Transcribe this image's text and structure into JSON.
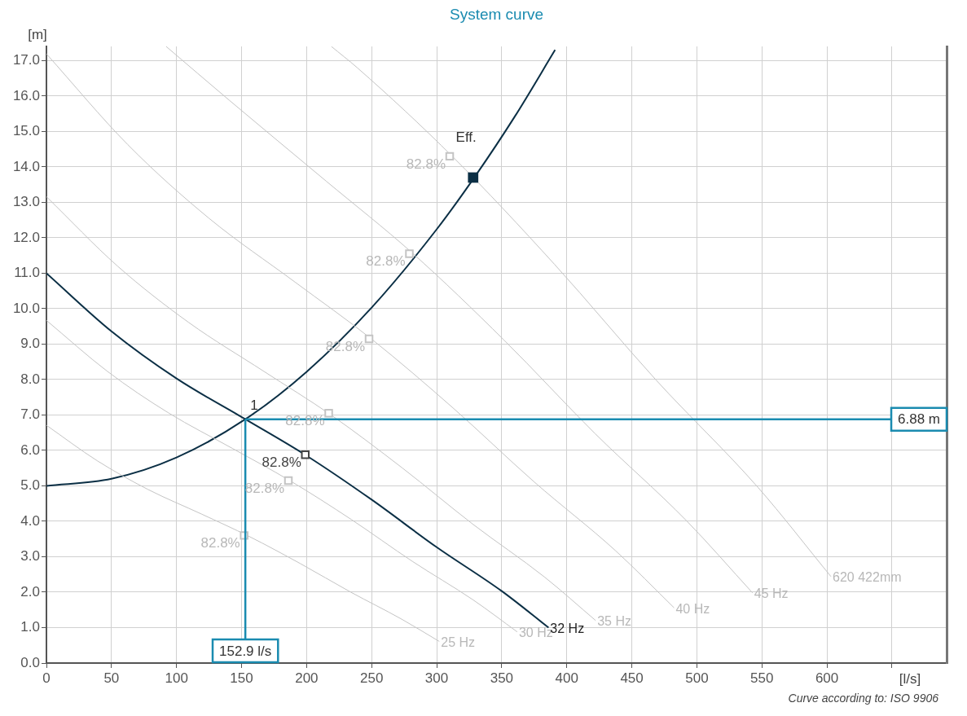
{
  "chart_data": {
    "type": "line",
    "title": "System curve",
    "xlabel": "[l/s]",
    "ylabel": "[m]",
    "xlim": [
      0,
      692
    ],
    "ylim": [
      0,
      17.4
    ],
    "xticks": [
      0,
      50,
      100,
      150,
      200,
      250,
      300,
      350,
      400,
      450,
      500,
      550,
      600,
      {
        "value": 650,
        "label": null
      }
    ],
    "yticks": [
      {
        "value": 0,
        "label": "0.0"
      },
      {
        "value": 1,
        "label": "1.0"
      },
      {
        "value": 2,
        "label": "2.0"
      },
      {
        "value": 3,
        "label": "3.0"
      },
      {
        "value": 4,
        "label": "4.0"
      },
      {
        "value": 5,
        "label": "5.0"
      },
      {
        "value": 6,
        "label": "6.0"
      },
      {
        "value": 7,
        "label": "7.0"
      },
      {
        "value": 8,
        "label": "8.0"
      },
      {
        "value": 9,
        "label": "9.0"
      },
      {
        "value": 10,
        "label": "10.0"
      },
      {
        "value": 11,
        "label": "11.0"
      },
      {
        "value": 12,
        "label": "12.0"
      },
      {
        "value": 13,
        "label": "13.0"
      },
      {
        "value": 14,
        "label": "14.0"
      },
      {
        "value": 15,
        "label": "15.0"
      },
      {
        "value": 16,
        "label": "16.0"
      },
      {
        "value": 17,
        "label": "17.0"
      }
    ],
    "grid": true,
    "legend": false,
    "series": [
      {
        "name": "25 Hz",
        "color": "#c4c4c4",
        "marker": "none",
        "x": [
          0,
          39,
          78,
          119.5,
          156,
          195,
          234,
          273,
          302
        ],
        "values": [
          6.71,
          5.71,
          4.9,
          4.2,
          3.57,
          2.81,
          2.0,
          1.24,
          0.61
        ]
      },
      {
        "name": "30 Hz",
        "color": "#c4c4c4",
        "marker": "none",
        "x": [
          0,
          46.9,
          93.8,
          143.3,
          187.5,
          234.4,
          281.3,
          328.1,
          361.9
        ],
        "values": [
          9.67,
          8.23,
          7.06,
          6.05,
          5.14,
          4.05,
          2.87,
          1.78,
          0.88
        ]
      },
      {
        "name": "35 Hz",
        "color": "#c4c4c4",
        "marker": "none",
        "x": [
          0,
          54.7,
          109.4,
          167.2,
          218.8,
          273.4,
          328.1,
          382.8,
          422.2
        ],
        "values": [
          13.16,
          11.2,
          9.61,
          8.23,
          7.0,
          5.51,
          3.91,
          2.43,
          1.2
        ]
      },
      {
        "name": "40 Hz",
        "color": "#c4c4c4",
        "marker": "none",
        "x": [
          0,
          62.5,
          125,
          191.1,
          250,
          312.5,
          375,
          437.5,
          482.5
        ],
        "values": [
          17.19,
          14.63,
          12.55,
          10.75,
          9.14,
          7.2,
          5.11,
          3.17,
          1.56
        ]
      },
      {
        "name": "45 Hz",
        "color": "#c4c4c4",
        "marker": "none",
        "x": [
          92,
          140.6,
          215,
          281.3,
          351.6,
          421.9,
          492.2,
          542.8
        ],
        "values": [
          17.4,
          15.88,
          13.6,
          11.57,
          9.12,
          6.47,
          4.01,
          1.98
        ]
      },
      {
        "name": "620 422mm",
        "color": "#c4c4c4",
        "marker": "none",
        "x": [
          219,
          238.9,
          312.5,
          390.6,
          468.8,
          546.9,
          603.1
        ],
        "values": [
          17.4,
          16.8,
          14.28,
          11.25,
          7.98,
          4.96,
          2.44
        ]
      },
      {
        "name": "32 Hz",
        "color": "#0b2f45",
        "marker": "none",
        "x": [
          0,
          50,
          100,
          152.9,
          200,
          250,
          300,
          350,
          386
        ],
        "values": [
          11.0,
          9.36,
          8.03,
          6.88,
          5.85,
          4.61,
          3.27,
          2.03,
          1.0
        ]
      },
      {
        "color": "#0b2f45",
        "marker": "none",
        "x": [
          0,
          50,
          100,
          152.9,
          200,
          250,
          300,
          330,
          360,
          391
        ],
        "values": [
          5.0,
          5.2,
          5.8,
          6.88,
          8.22,
          10.03,
          12.24,
          13.76,
          15.42,
          17.3
        ]
      },
      {
        "type": "scatter",
        "color": "#c4c4c4",
        "marker": "square",
        "x": [
          152,
          186,
          217,
          248,
          279,
          310
        ],
        "values": [
          3.6,
          5.15,
          7.05,
          9.15,
          11.55,
          14.3
        ]
      },
      {
        "type": "scatter",
        "color": "#444444",
        "marker": "square",
        "x": [
          199
        ],
        "values": [
          5.88
        ]
      },
      {
        "type": "scatter",
        "color": "#0b2f45",
        "marker": "square",
        "x": [
          328
        ],
        "values": [
          13.7
        ]
      }
    ],
    "ref_lines": [
      {
        "axis": "x",
        "value": 152.9,
        "label": "152.9 l/s",
        "color": "#1a8bb0"
      },
      {
        "axis": "y",
        "value": 6.88,
        "label": "6.88 m",
        "color": "#1a8bb0"
      }
    ],
    "annotations": [
      {
        "text": "1",
        "x": 152.9,
        "y": 6.88
      },
      {
        "text": "Eff.",
        "x": 311,
        "y": 14.45
      },
      {
        "text": "82.8%",
        "x": 152,
        "y": 3.6
      },
      {
        "text": "82.8%",
        "x": 186,
        "y": 5.15
      },
      {
        "text": "82.8%",
        "x": 217,
        "y": 7.05
      },
      {
        "text": "82.8%",
        "x": 248,
        "y": 9.15
      },
      {
        "text": "82.8%",
        "x": 279,
        "y": 11.55
      },
      {
        "text": "82.8%",
        "x": 310,
        "y": 14.3
      },
      {
        "text": "82.8%",
        "x": 199,
        "y": 5.88
      },
      "Curve according to: ISO 9906"
    ]
  }
}
